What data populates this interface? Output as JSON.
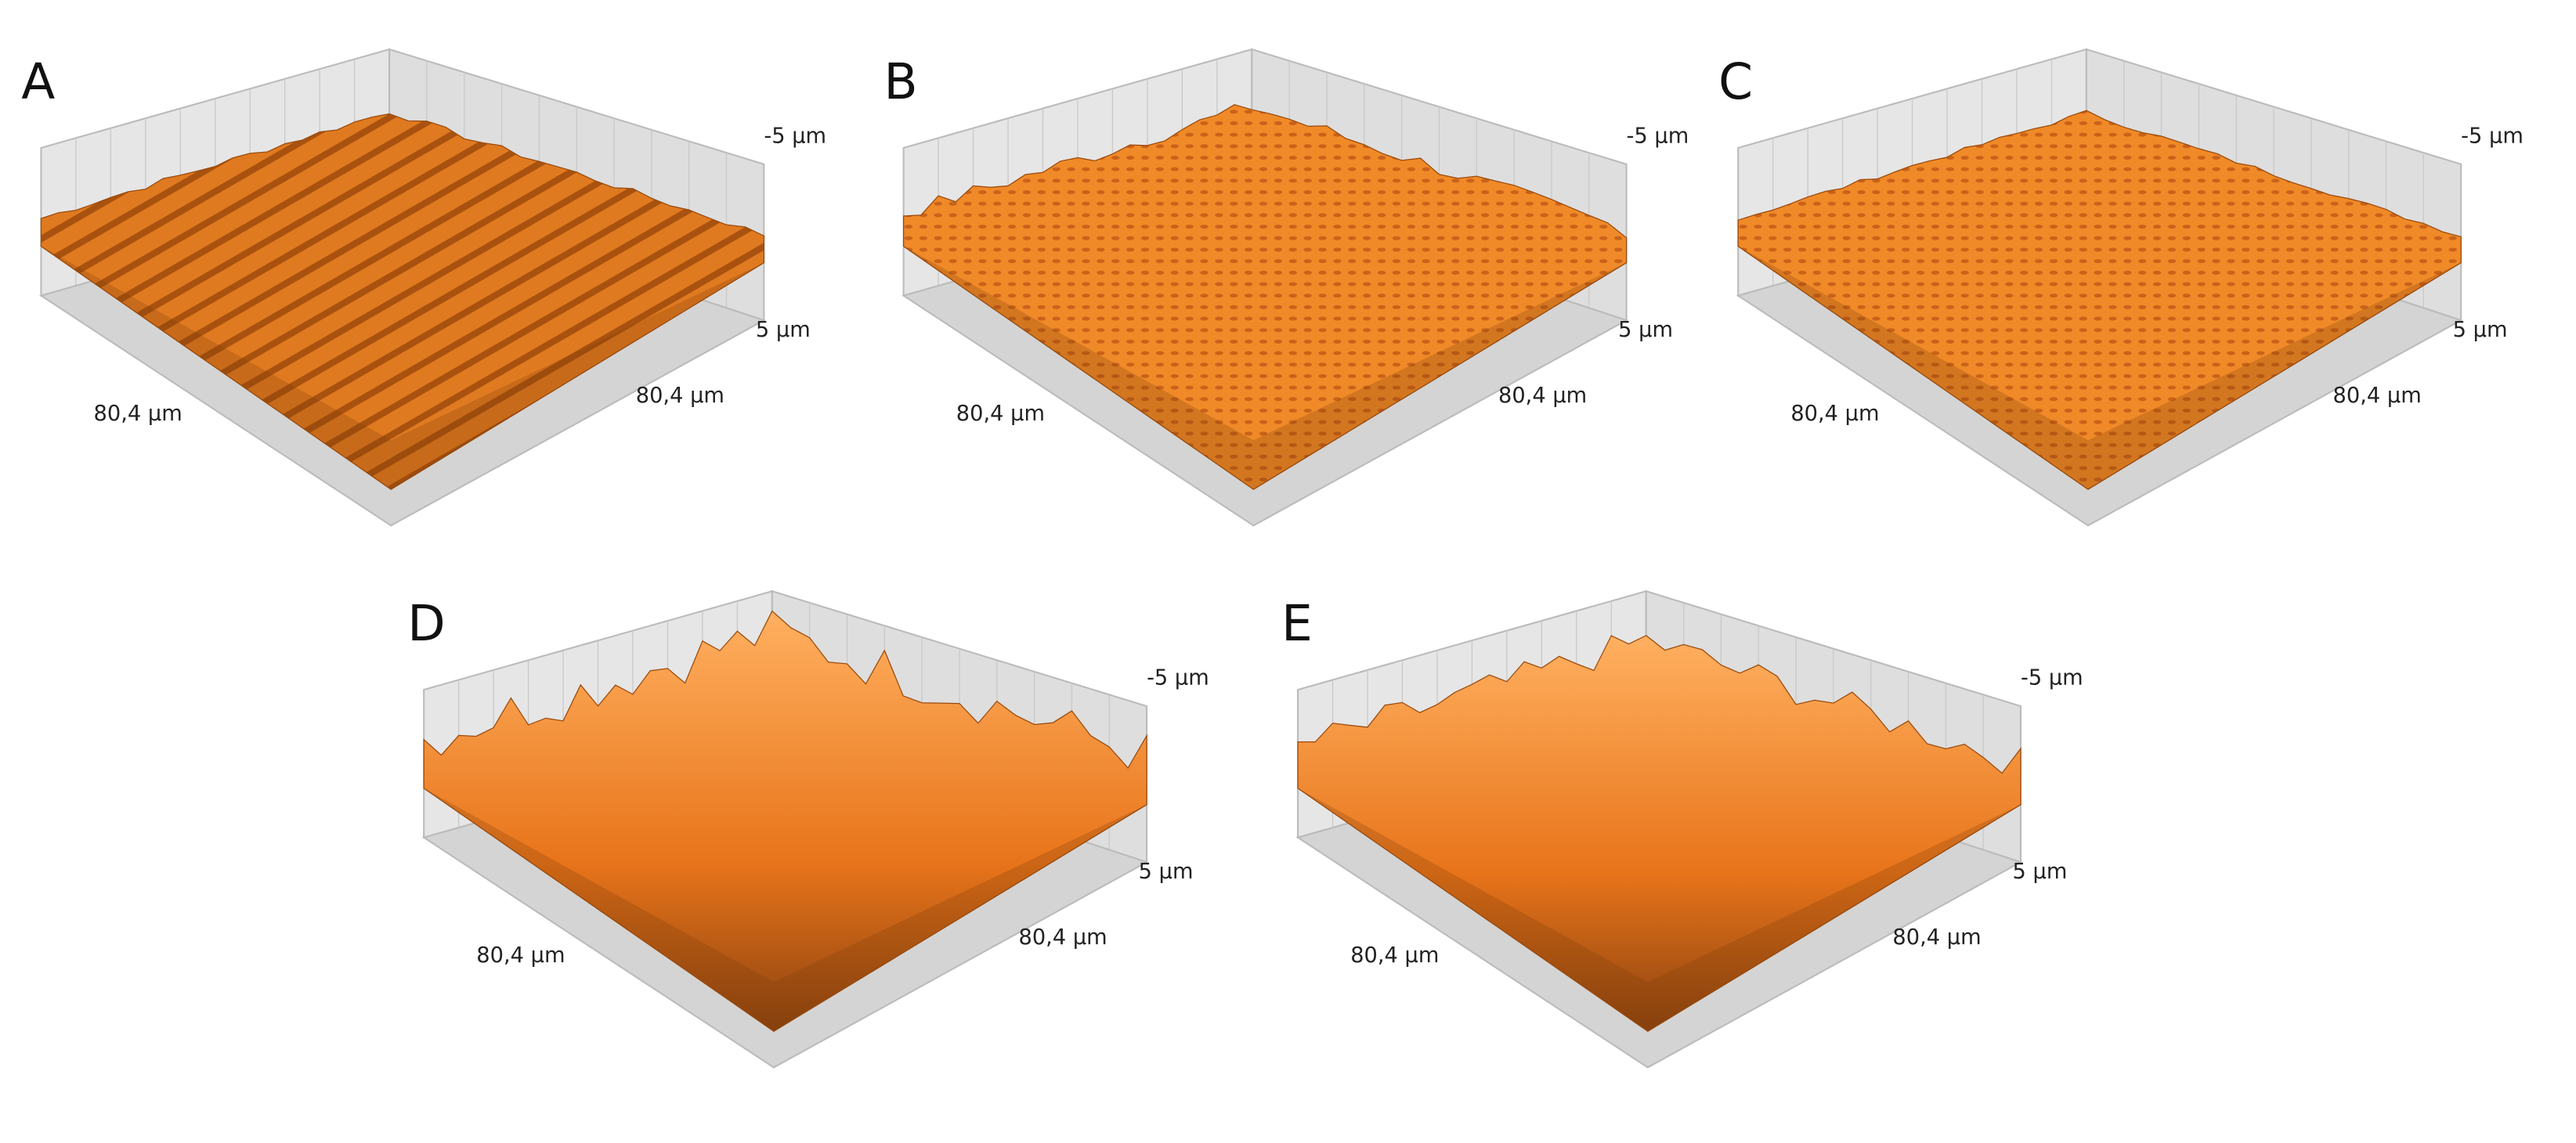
{
  "panels": [
    {
      "label": "A",
      "z_top": "-5 µm",
      "z_bottom": "5 µm",
      "x_axis": "80,4 µm",
      "y_axis": "80,4 µm"
    },
    {
      "label": "B",
      "z_top": "-5 µm",
      "z_bottom": "5 µm",
      "x_axis": "80,4 µm",
      "y_axis": "80,4 µm"
    },
    {
      "label": "C",
      "z_top": "-5 µm",
      "z_bottom": "5 µm",
      "x_axis": "80,4 µm",
      "y_axis": "80,4 µm"
    },
    {
      "label": "D",
      "z_top": "-5 µm",
      "z_bottom": "5 µm",
      "x_axis": "80,4 µm",
      "y_axis": "80,4 µm"
    },
    {
      "label": "E",
      "z_top": "-5 µm",
      "z_bottom": "5 µm",
      "x_axis": "80,4 µm",
      "y_axis": "80,4 µm"
    }
  ]
}
